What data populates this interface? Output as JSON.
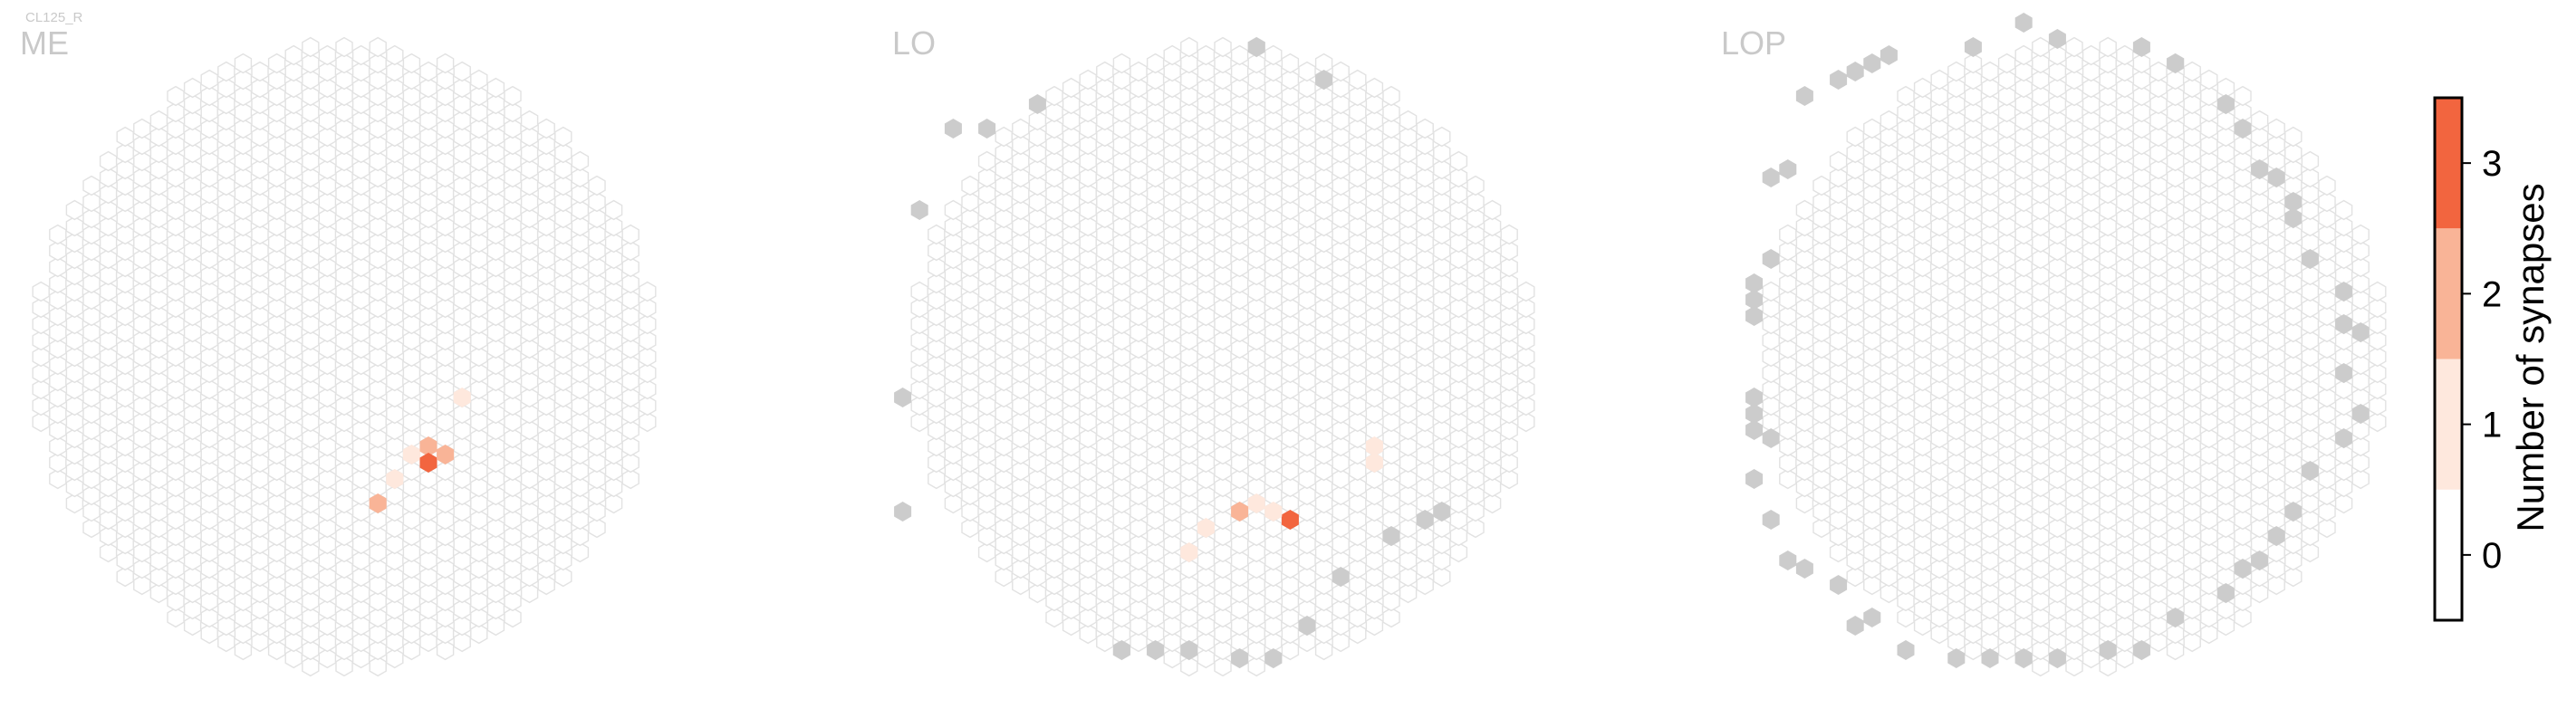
{
  "chart_data": {
    "type": "hexbin-map",
    "cell_type": "CL125_R",
    "panels": [
      {
        "name": "ME",
        "grid_rows": 35,
        "outside_cells": [],
        "hot_cells": [
          {
            "col": 18,
            "row": 9,
            "value": 2
          },
          {
            "col": 19,
            "row": 10,
            "value": 1
          },
          {
            "col": 20,
            "row": 11,
            "value": 1
          },
          {
            "col": 21,
            "row": 12,
            "value": 2
          },
          {
            "col": 21,
            "row": 11,
            "value": 3
          },
          {
            "col": 22,
            "row": 11,
            "value": 2
          },
          {
            "col": 23,
            "row": 15,
            "value": 1
          }
        ]
      },
      {
        "name": "LO",
        "grid_rows": 33,
        "outside_cells": [
          {
            "col": 3,
            "row": 29
          },
          {
            "col": 4,
            "row": 29
          },
          {
            "col": 7,
            "row": 30
          },
          {
            "col": 0,
            "row": 15
          },
          {
            "col": 1,
            "row": 24
          },
          {
            "col": 0,
            "row": 9
          },
          {
            "col": 11,
            "row": 1
          },
          {
            "col": 13,
            "row": 1
          },
          {
            "col": 15,
            "row": 1
          },
          {
            "col": 17,
            "row": 1
          },
          {
            "col": 19,
            "row": 1
          },
          {
            "col": 21,
            "row": 3
          },
          {
            "col": 23,
            "row": 5
          },
          {
            "col": 25,
            "row": 7
          },
          {
            "col": 27,
            "row": 8
          },
          {
            "col": 28,
            "row": 9
          },
          {
            "col": 18,
            "row": 33
          },
          {
            "col": 22,
            "row": 31
          }
        ],
        "hot_cells": [
          {
            "col": 20,
            "row": 8,
            "value": 3
          },
          {
            "col": 19,
            "row": 9,
            "value": 1
          },
          {
            "col": 18,
            "row": 9,
            "value": 1
          },
          {
            "col": 17,
            "row": 9,
            "value": 2
          },
          {
            "col": 16,
            "row": 8,
            "value": 1
          },
          {
            "col": 15,
            "row": 6,
            "value": 1
          },
          {
            "col": 24,
            "row": 12,
            "value": 1
          },
          {
            "col": 24,
            "row": 11,
            "value": 1
          }
        ]
      },
      {
        "name": "LOP",
        "grid_rows": 35,
        "outside_cells": [
          {
            "col": 3,
            "row": 30
          },
          {
            "col": 4,
            "row": 31
          },
          {
            "col": 5,
            "row": 32
          },
          {
            "col": 6,
            "row": 32
          },
          {
            "col": 7,
            "row": 33
          },
          {
            "col": 1,
            "row": 26
          },
          {
            "col": 2,
            "row": 27
          },
          {
            "col": 0,
            "row": 19
          },
          {
            "col": 0,
            "row": 20
          },
          {
            "col": 0,
            "row": 21
          },
          {
            "col": 1,
            "row": 22
          },
          {
            "col": 0,
            "row": 15
          },
          {
            "col": 0,
            "row": 14
          },
          {
            "col": 0,
            "row": 13
          },
          {
            "col": 1,
            "row": 12
          },
          {
            "col": 0,
            "row": 10
          },
          {
            "col": 1,
            "row": 8
          },
          {
            "col": 2,
            "row": 6
          },
          {
            "col": 3,
            "row": 5
          },
          {
            "col": 4,
            "row": 4
          },
          {
            "col": 5,
            "row": 3
          },
          {
            "col": 6,
            "row": 3
          },
          {
            "col": 8,
            "row": 1
          },
          {
            "col": 10,
            "row": 1
          },
          {
            "col": 12,
            "row": 1
          },
          {
            "col": 14,
            "row": 1
          },
          {
            "col": 16,
            "row": 1
          },
          {
            "col": 18,
            "row": 1
          },
          {
            "col": 20,
            "row": 1
          },
          {
            "col": 22,
            "row": 3
          },
          {
            "col": 24,
            "row": 4
          },
          {
            "col": 25,
            "row": 5
          },
          {
            "col": 26,
            "row": 6
          },
          {
            "col": 27,
            "row": 7
          },
          {
            "col": 28,
            "row": 9
          },
          {
            "col": 29,
            "row": 10
          },
          {
            "col": 30,
            "row": 12
          },
          {
            "col": 31,
            "row": 14
          },
          {
            "col": 30,
            "row": 16
          },
          {
            "col": 30,
            "row": 18
          },
          {
            "col": 31,
            "row": 18
          },
          {
            "col": 30,
            "row": 20
          },
          {
            "col": 29,
            "row": 22
          },
          {
            "col": 28,
            "row": 24
          },
          {
            "col": 28,
            "row": 25
          },
          {
            "col": 27,
            "row": 26
          },
          {
            "col": 26,
            "row": 27
          },
          {
            "col": 25,
            "row": 29
          },
          {
            "col": 24,
            "row": 30
          },
          {
            "col": 14,
            "row": 35
          },
          {
            "col": 11,
            "row": 33
          },
          {
            "col": 20,
            "row": 33
          },
          {
            "col": 22,
            "row": 32
          },
          {
            "col": 16,
            "row": 34
          }
        ],
        "hot_cells": []
      }
    ],
    "colorbar": {
      "label": "Number of synapses",
      "ticks": [
        "0",
        "1",
        "2",
        "3"
      ],
      "colors": [
        "#ffffff",
        "#fee8dd",
        "#f9b497",
        "#f2653f"
      ]
    },
    "colors": {
      "empty_stroke": "#e2e2e2",
      "empty_fill": "#ffffff",
      "outside_fill": "#cccccc",
      "label": "#c9c9c9"
    }
  }
}
